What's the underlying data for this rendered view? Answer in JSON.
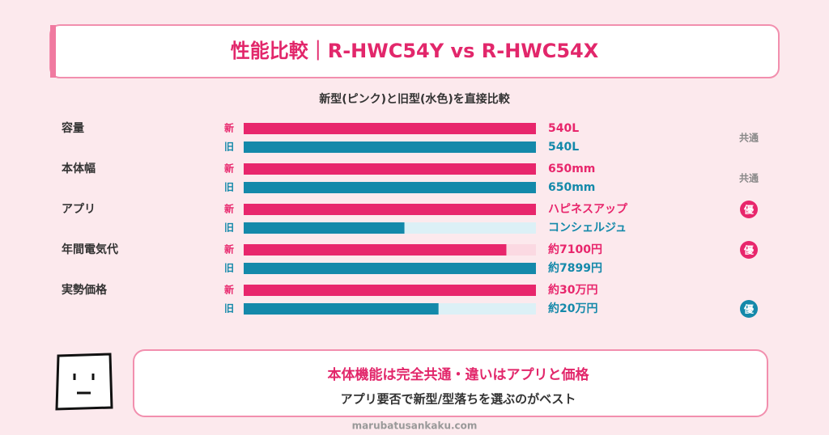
{
  "header": {
    "title": "性能比較｜R-HWC54Y vs R-HWC54X"
  },
  "chart_data": {
    "type": "paired-bar",
    "subtitle": "新型(ピンク)と旧型(水色)を直接比較",
    "categories": [
      "容量",
      "本体幅",
      "アプリ",
      "年間電気代",
      "実勢価格"
    ],
    "series": [
      {
        "name": "新",
        "color": "#e8266c",
        "track_color": "#fbd9e2",
        "values": [
          540,
          650,
          100,
          7100,
          30
        ],
        "value_labels": [
          "540L",
          "650mm",
          "ハピネスアップ",
          "約7100円",
          "約30万円"
        ]
      },
      {
        "name": "旧",
        "color": "#1489aa",
        "track_color": "#dcf0f6",
        "values": [
          540,
          650,
          55,
          7899,
          20
        ],
        "value_labels": [
          "540L",
          "650mm",
          "コンシェルジュ",
          "約7899円",
          "約20万円"
        ]
      }
    ],
    "badges": [
      "共通",
      "共通",
      "優",
      "優",
      "優"
    ],
    "badge_series": [
      null,
      null,
      0,
      0,
      1
    ]
  },
  "note": {
    "line1": "本体機能は完全共通・違いはアプリと価格",
    "line2": "アプリ要否で新型/型落ちを選ぶのがベスト"
  },
  "footer": {
    "site": "marubatusankaku.com"
  }
}
